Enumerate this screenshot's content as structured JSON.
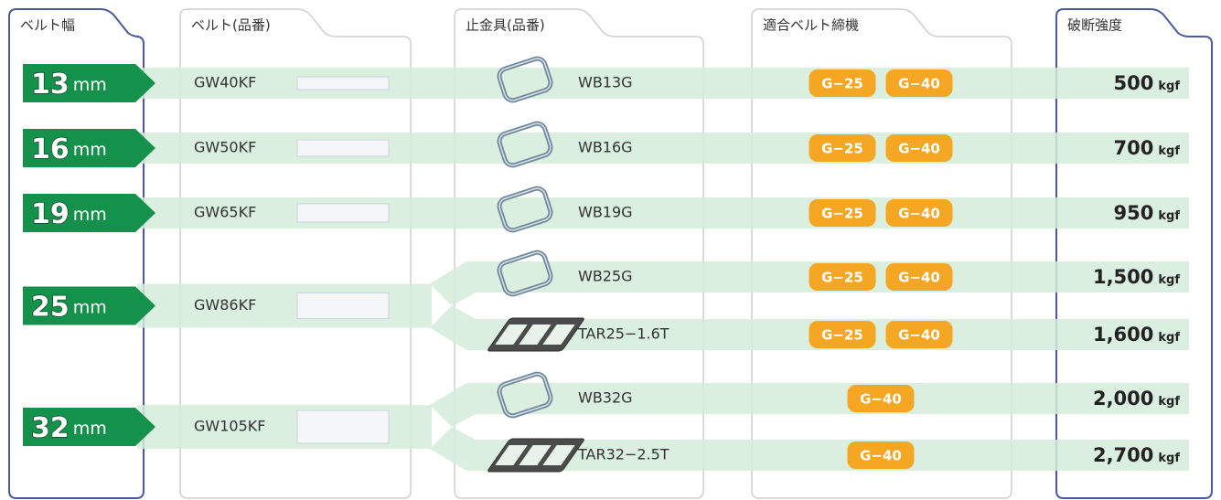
{
  "header": [
    "ベルト幅",
    "ベルト(品番)",
    "止金具(品番)",
    "適合ベルト締機",
    "破断強度"
  ],
  "groups": [
    {
      "width": "13",
      "unit": "mm",
      "belt": "GW40KF",
      "items": [
        {
          "buckle": "WB13G",
          "machines": [
            "G−25",
            "G−40"
          ],
          "strength": "500",
          "strength_unit": "kgf"
        }
      ]
    },
    {
      "width": "16",
      "unit": "mm",
      "belt": "GW50KF",
      "items": [
        {
          "buckle": "WB16G",
          "machines": [
            "G−25",
            "G−40"
          ],
          "strength": "700",
          "strength_unit": "kgf"
        }
      ]
    },
    {
      "width": "19",
      "unit": "mm",
      "belt": "GW65KF",
      "items": [
        {
          "buckle": "WB19G",
          "machines": [
            "G−25",
            "G−40"
          ],
          "strength": "950",
          "strength_unit": "kgf"
        }
      ]
    },
    {
      "width": "25",
      "unit": "mm",
      "belt": "GW86KF",
      "items": [
        {
          "buckle": "WB25G",
          "machines": [
            "G−25",
            "G−40"
          ],
          "strength": "1,500",
          "strength_unit": "kgf"
        },
        {
          "buckle": "TAR25−1.6T",
          "machines": [
            "G−25",
            "G−40"
          ],
          "strength": "1,600",
          "strength_unit": "kgf"
        }
      ]
    },
    {
      "width": "32",
      "unit": "mm",
      "belt": "GW105KF",
      "items": [
        {
          "buckle": "WB32G",
          "machines": [
            "G−40"
          ],
          "strength": "2,000",
          "strength_unit": "kgf"
        },
        {
          "buckle": "TAR32−2.5T",
          "machines": [
            "G−40"
          ],
          "strength": "2,700",
          "strength_unit": "kgf"
        }
      ]
    }
  ]
}
